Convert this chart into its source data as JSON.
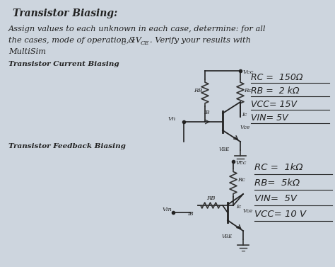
{
  "bg_color": "#cdd5de",
  "paper_color": "#dce8f0",
  "title": "Transistor Biasing:",
  "body_line1": "Assign values to each unknown in each case, determine: for all",
  "body_line2": "the cases, mode of operation, I",
  "body_line2b": "C",
  "body_line2c": " &V",
  "body_line2d": "CE",
  "body_line2e": ". Verify your results with",
  "body_line3": "MultiSim",
  "section1": "Transistor Current Biasing",
  "section2": "Transistor Feedback Biasing",
  "c1_vals": [
    "RC =  150Ω",
    "RB =  2 kΩ",
    "VCC= 15V",
    "VIN= 5V"
  ],
  "c2_vals": [
    "RC =  1kΩ",
    "RB=  5kΩ",
    "VIN=  5V",
    "VCC= 10 V"
  ]
}
